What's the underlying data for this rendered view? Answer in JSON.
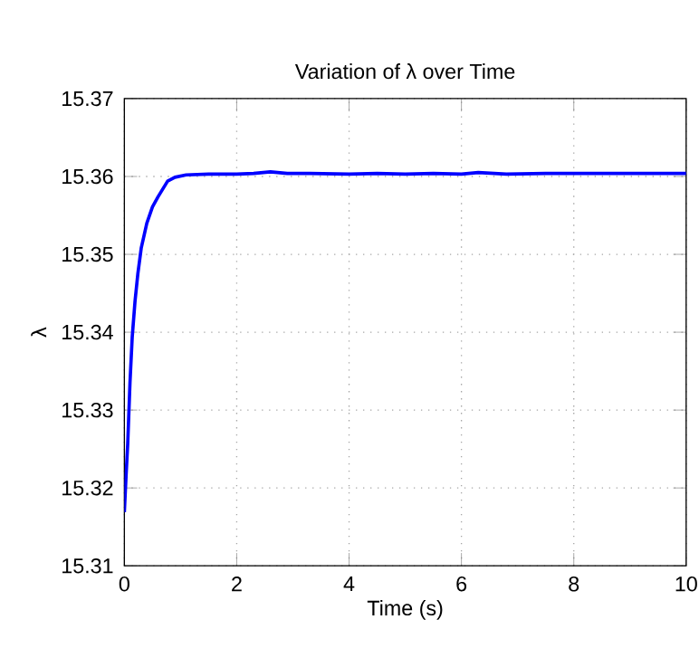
{
  "chart_data": {
    "type": "line",
    "title": "Variation of λ over Time",
    "xlabel": "Time (s)",
    "ylabel": "λ",
    "x": [
      0,
      0.03,
      0.06,
      0.1,
      0.14,
      0.19,
      0.24,
      0.3,
      0.4,
      0.5,
      0.6,
      0.77,
      0.9,
      1.1,
      1.5,
      2,
      2.3,
      2.6,
      2.9,
      3.3,
      4,
      4.5,
      5,
      5.5,
      6,
      6.3,
      6.8,
      7.5,
      8,
      9,
      10
    ],
    "values": [
      15.3169,
      15.3215,
      15.3257,
      15.3335,
      15.3394,
      15.344,
      15.3475,
      15.3508,
      15.354,
      15.3561,
      15.3574,
      15.3594,
      15.3599,
      15.3602,
      15.3603,
      15.3603,
      15.3604,
      15.3606,
      15.3604,
      15.3604,
      15.3603,
      15.3604,
      15.3603,
      15.3604,
      15.3603,
      15.3605,
      15.3603,
      15.3604,
      15.3604,
      15.3604,
      15.3604
    ],
    "color": "#0000ff",
    "xlim": [
      0,
      10
    ],
    "ylim": [
      15.31,
      15.37
    ],
    "xticks": [
      0,
      2,
      4,
      6,
      8,
      10
    ],
    "yticks": [
      15.31,
      15.32,
      15.33,
      15.34,
      15.35,
      15.36,
      15.37
    ],
    "grid": true,
    "line_style": "solid",
    "marker": "none"
  }
}
